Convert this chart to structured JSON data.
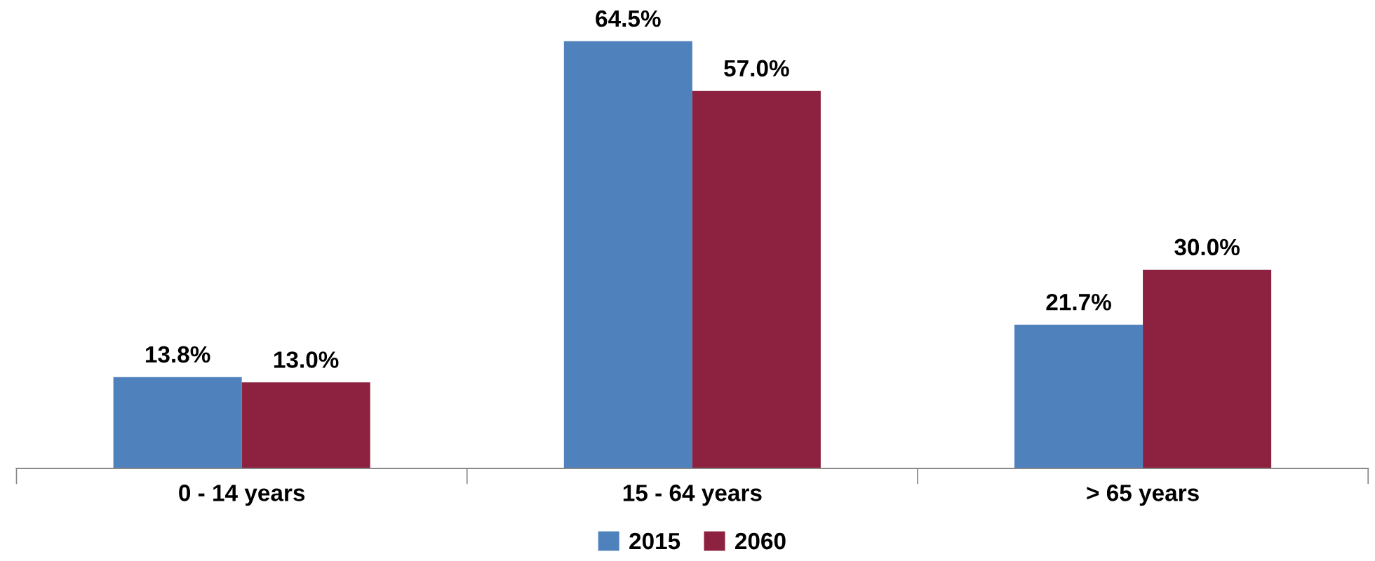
{
  "chart_data": {
    "type": "bar",
    "categories": [
      "0 - 14 years",
      "15 - 64 years",
      "> 65 years"
    ],
    "series": [
      {
        "name": "2015",
        "color": "#4f81bd",
        "values": [
          13.8,
          64.5,
          21.7
        ],
        "value_labels": [
          "13.8%",
          "64.5%",
          "21.7%"
        ]
      },
      {
        "name": "2060",
        "color": "#8c2140",
        "values": [
          13.0,
          57.0,
          30.0
        ],
        "value_labels": [
          "13.0%",
          "57.0%",
          "30.0%"
        ]
      }
    ],
    "legend": "bottom",
    "grid": false
  }
}
